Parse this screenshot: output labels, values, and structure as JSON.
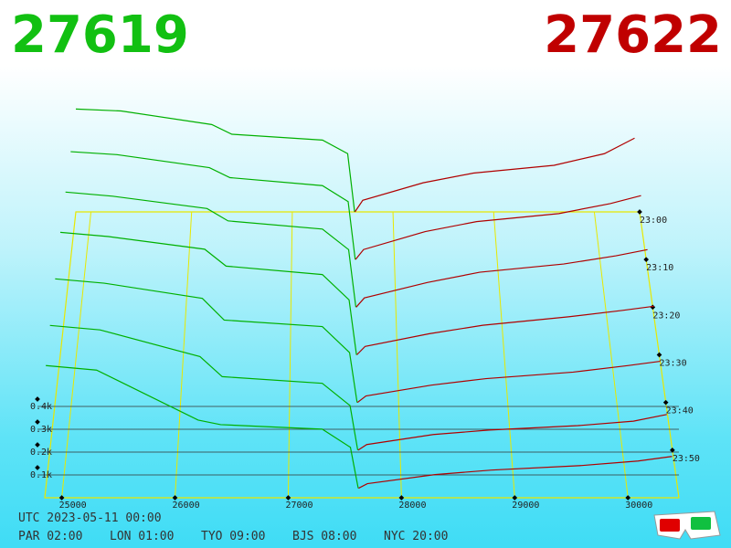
{
  "chart_data": {
    "type": "depth3d",
    "bid_price": 27619,
    "ask_price": 27622,
    "bid_color": "#00b000",
    "ask_color": "#b00000",
    "xlim": [
      24850,
      30450
    ],
    "xticks": [
      25000,
      26000,
      27000,
      28000,
      29000,
      30000
    ],
    "ylim": [
      0,
      700
    ],
    "yticks": [
      {
        "value": 100,
        "label": "0.1k"
      },
      {
        "value": 200,
        "label": "0.2k"
      },
      {
        "value": 300,
        "label": "0.3k"
      },
      {
        "value": 400,
        "label": "0.4k"
      }
    ],
    "time_lim": [
      0,
      60
    ],
    "time_ticks": [
      {
        "value": 0,
        "label": "23:00"
      },
      {
        "value": 10,
        "label": "23:10"
      },
      {
        "value": 20,
        "label": "23:20"
      },
      {
        "value": 30,
        "label": "23:30"
      },
      {
        "value": 40,
        "label": "23:40"
      },
      {
        "value": 50,
        "label": "23:50"
      }
    ],
    "snapshots": [
      {
        "minute": 0,
        "bid_prices": [
          24850,
          25300,
          26200,
          26400,
          27300,
          27550,
          27619
        ],
        "bid_depths": [
          530,
          520,
          450,
          400,
          370,
          300,
          0
        ],
        "ask_prices": [
          27622,
          27700,
          28300,
          28800,
          29600,
          30100,
          30400
        ],
        "ask_depths": [
          0,
          60,
          150,
          200,
          240,
          300,
          380
        ]
      },
      {
        "minute": 10,
        "bid_prices": [
          24850,
          25300,
          26200,
          26400,
          27300,
          27550,
          27619
        ],
        "bid_depths": [
          540,
          525,
          460,
          410,
          370,
          290,
          0
        ],
        "ask_prices": [
          27622,
          27700,
          28300,
          28800,
          29600,
          30100,
          30400
        ],
        "ask_depths": [
          0,
          50,
          140,
          190,
          230,
          280,
          320
        ]
      },
      {
        "minute": 20,
        "bid_prices": [
          24850,
          25300,
          26200,
          26400,
          27300,
          27550,
          27619
        ],
        "bid_depths": [
          560,
          540,
          480,
          420,
          380,
          280,
          0
        ],
        "ask_prices": [
          27622,
          27700,
          28300,
          28800,
          29600,
          30100,
          30400
        ],
        "ask_depths": [
          0,
          45,
          120,
          170,
          210,
          250,
          280
        ]
      },
      {
        "minute": 30,
        "bid_prices": [
          24850,
          25300,
          26200,
          26400,
          27300,
          27550,
          27619
        ],
        "bid_depths": [
          580,
          560,
          500,
          420,
          380,
          260,
          0
        ],
        "ask_prices": [
          27622,
          27700,
          28300,
          28800,
          29600,
          30100,
          30400
        ],
        "ask_depths": [
          0,
          40,
          100,
          140,
          180,
          210,
          230
        ]
      },
      {
        "minute": 40,
        "bid_prices": [
          24850,
          25300,
          26200,
          26400,
          27300,
          27550,
          27619
        ],
        "bid_depths": [
          570,
          550,
          480,
          380,
          350,
          230,
          0
        ],
        "ask_prices": [
          27622,
          27700,
          28300,
          28800,
          29600,
          30100,
          30400
        ],
        "ask_depths": [
          0,
          30,
          80,
          110,
          140,
          170,
          190
        ]
      },
      {
        "minute": 50,
        "bid_prices": [
          24850,
          25300,
          26200,
          26400,
          27300,
          27550,
          27619
        ],
        "bid_depths": [
          560,
          540,
          420,
          330,
          300,
          200,
          0
        ],
        "ask_prices": [
          27622,
          27700,
          28300,
          28800,
          29600,
          30100,
          30400
        ],
        "ask_depths": [
          0,
          25,
          70,
          90,
          110,
          130,
          160
        ]
      },
      {
        "minute": 58,
        "bid_prices": [
          24850,
          25300,
          26200,
          26400,
          27300,
          27550,
          27619
        ],
        "bid_depths": [
          540,
          520,
          300,
          280,
          260,
          180,
          0
        ],
        "ask_prices": [
          27622,
          27700,
          28300,
          28800,
          29600,
          30100,
          30400
        ],
        "ask_depths": [
          0,
          20,
          60,
          80,
          100,
          120,
          140
        ]
      }
    ]
  },
  "footer": {
    "utc": "UTC 2023-05-11 00:00",
    "zones": [
      "PAR 02:00",
      "LON 01:00",
      "TYO 09:00",
      "BJS 08:00",
      "NYC 20:00"
    ]
  }
}
